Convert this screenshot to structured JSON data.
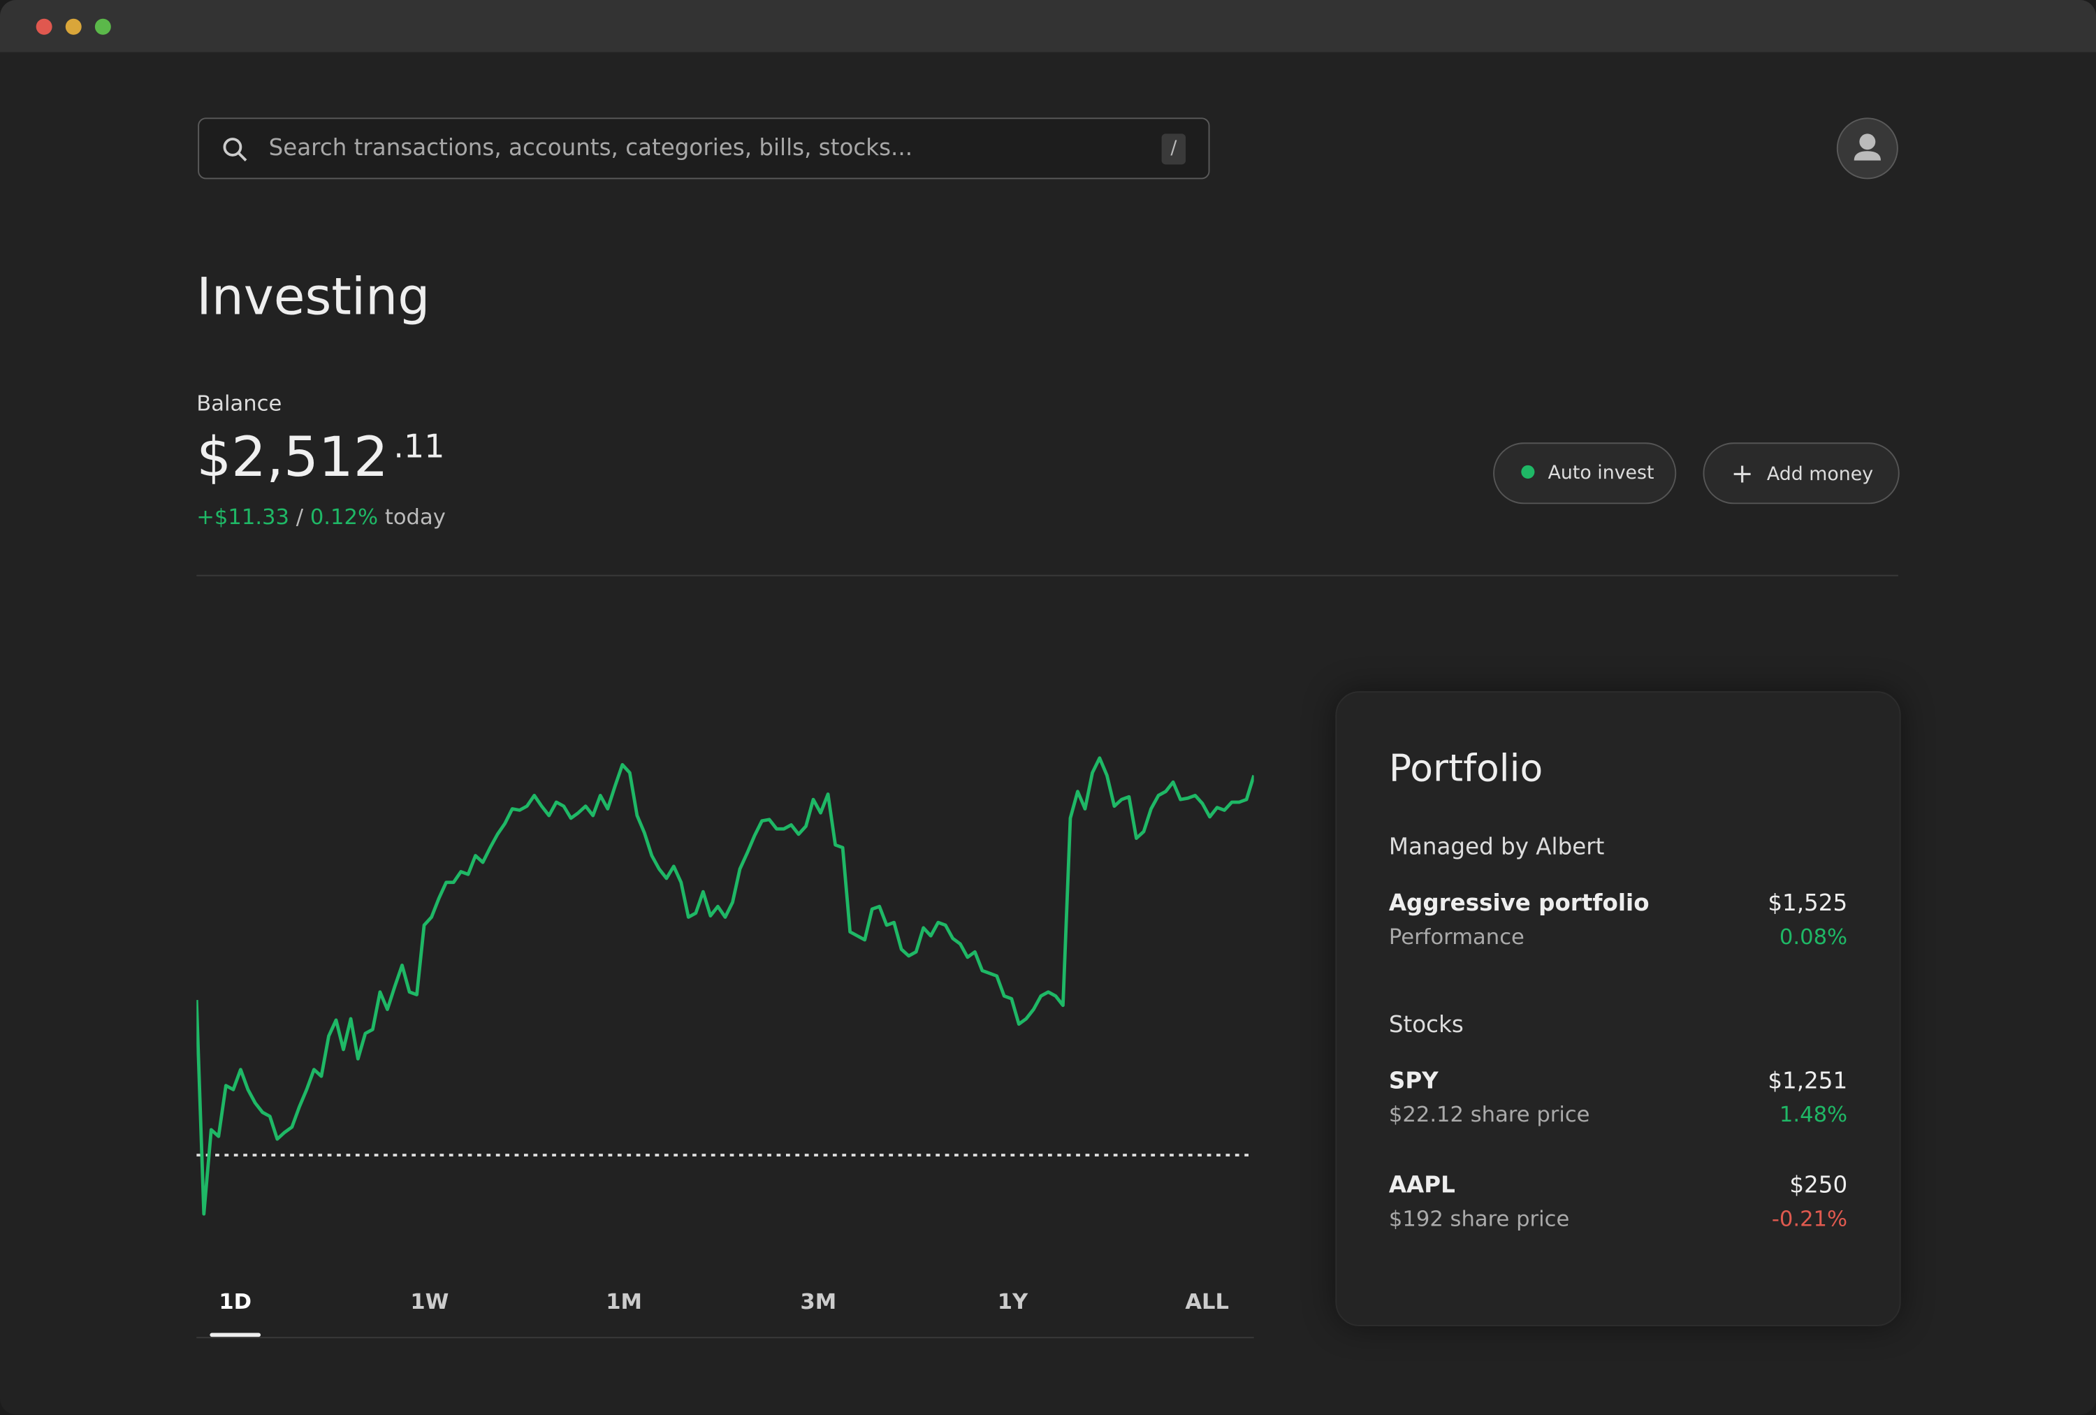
{
  "search": {
    "placeholder": "Search transactions, accounts, categories, bills, stocks...",
    "shortcut": "/"
  },
  "page_title": "Investing",
  "balance": {
    "label": "Balance",
    "whole": "$2,512",
    "cents": ".11",
    "change": "+$11.33",
    "separator": "/",
    "change_percent": "0.12%",
    "period": "today"
  },
  "actions": [
    "Auto invest",
    "Add money"
  ],
  "chart_data": {
    "type": "line",
    "color": "#1fb866",
    "ylim": [
      -50,
      300
    ],
    "baseline": 0,
    "values": [
      116,
      -44,
      19,
      14,
      52,
      49,
      64,
      49,
      39,
      32,
      29,
      12,
      17,
      21,
      36,
      49,
      64,
      59,
      89,
      101,
      79,
      102,
      72,
      91,
      94,
      122,
      109,
      126,
      142,
      122,
      120,
      172,
      178,
      192,
      204,
      204,
      212,
      210,
      224,
      219,
      230,
      240,
      248,
      259,
      258,
      261,
      269,
      261,
      254,
      264,
      261,
      252,
      256,
      261,
      254,
      269,
      259,
      276,
      292,
      286,
      254,
      241,
      224,
      214,
      207,
      216,
      204,
      178,
      181,
      197,
      179,
      186,
      178,
      189,
      214,
      226,
      239,
      250,
      251,
      244,
      244,
      247,
      240,
      246,
      266,
      256,
      270,
      232,
      230,
      167,
      164,
      161,
      184,
      186,
      172,
      174,
      154,
      149,
      152,
      170,
      164,
      174,
      172,
      162,
      158,
      148,
      152,
      138,
      136,
      134,
      119,
      117,
      98,
      102,
      109,
      119,
      122,
      119,
      112,
      252,
      272,
      259,
      286,
      297,
      284,
      261,
      266,
      268,
      237,
      242,
      259,
      269,
      272,
      279,
      266,
      267,
      269,
      263,
      253,
      260,
      258,
      264,
      264,
      266,
      284
    ]
  },
  "time_ranges": [
    "1D",
    "1W",
    "1M",
    "3M",
    "1Y",
    "ALL"
  ],
  "selected_range_index": 0,
  "portfolio": {
    "title": "Portfolio",
    "sections": [
      {
        "heading": "Managed by Albert",
        "items": [
          {
            "name": "Aggressive portfolio",
            "value": "$1,525",
            "detail": "Performance",
            "change": "0.08%"
          }
        ]
      },
      {
        "heading": "Stocks",
        "items": [
          {
            "name": "SPY",
            "value": "$1,251",
            "detail": "$22.12 share price",
            "change": "1.48%"
          },
          {
            "name": "AAPL",
            "value": "$250",
            "detail": "$192 share price",
            "change": "-0.21%"
          }
        ]
      }
    ]
  }
}
